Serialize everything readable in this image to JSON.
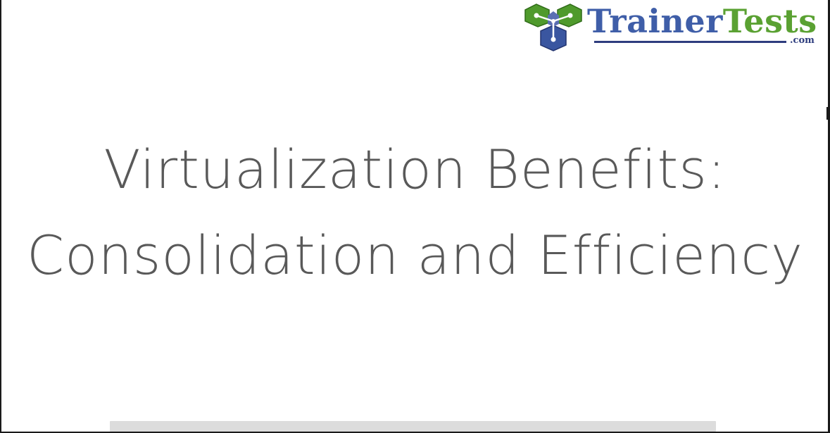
{
  "logo": {
    "name_part1": "Trainer",
    "name_part2": "Tests",
    "domain": ".com",
    "icon": "trainertests-logo-icon",
    "colors": {
      "blue": "#3f5ea8",
      "green": "#5aa132",
      "navy": "#2e3d7e"
    }
  },
  "slide": {
    "title_line1": "Virtualization  Benefits:",
    "title_line2": "Consolidation and Efficiency",
    "text_color": "#595959"
  }
}
